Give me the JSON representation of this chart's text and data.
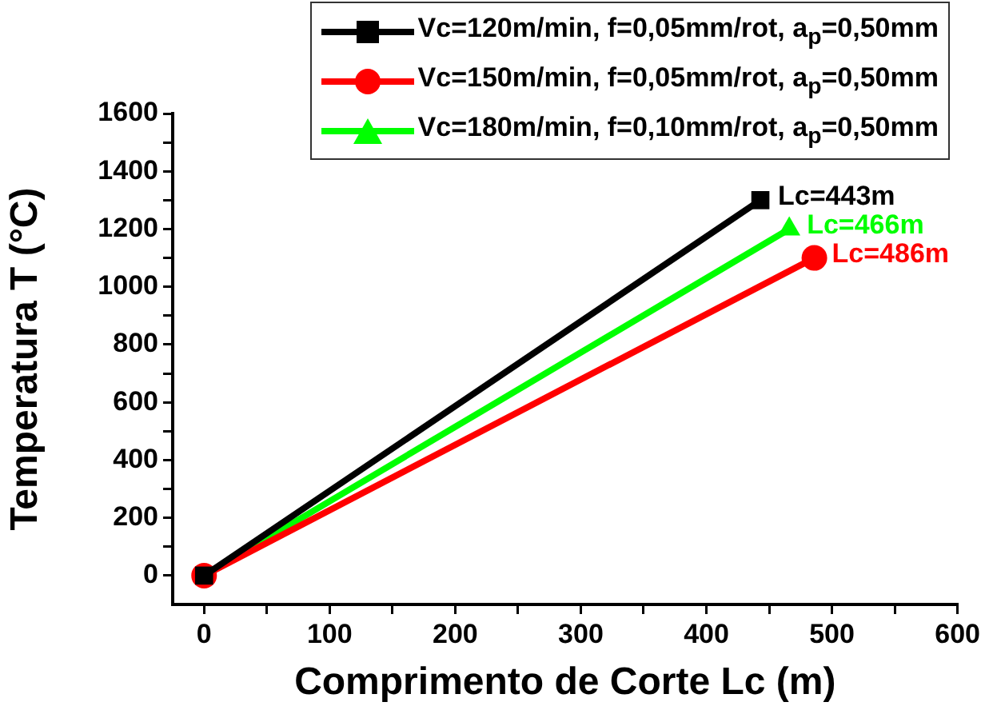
{
  "chart_data": {
    "type": "line",
    "xlabel": "Comprimento de Corte Lc (m)",
    "ylabel": "Temperatura T (°C)",
    "xlim": [
      -25,
      600
    ],
    "xticks": [
      0,
      {
        "value": 50,
        "label": null
      },
      100,
      {
        "value": 150,
        "label": null
      },
      200,
      {
        "value": 250,
        "label": null
      },
      300,
      {
        "value": 350,
        "label": null
      },
      400,
      {
        "value": 450,
        "label": null
      },
      500,
      {
        "value": 550,
        "label": null
      },
      600
    ],
    "ylim": [
      -100,
      1600
    ],
    "yticks": [
      0,
      {
        "value": 100,
        "label": null
      },
      200,
      {
        "value": 300,
        "label": null
      },
      400,
      {
        "value": 500,
        "label": null
      },
      600,
      {
        "value": 700,
        "label": null
      },
      800,
      {
        "value": 900,
        "label": null
      },
      1000,
      {
        "value": 1100,
        "label": null
      },
      1200,
      {
        "value": 1300,
        "label": null
      },
      1400,
      {
        "value": 1500,
        "label": null
      },
      1600
    ],
    "grid": false,
    "legend": "top right",
    "line_style": "solid",
    "series": [
      {
        "name": "Vc=120m/min, f=0,05mm/rot, a$_{p}$=0,50mm",
        "color": "#000000",
        "marker": "square",
        "x": [
          0,
          443
        ],
        "values": [
          0,
          1300
        ]
      },
      {
        "name": "Vc=150m/min, f=0,05mm/rot, a$_{p}$=0,50mm",
        "color": "#ff0000",
        "marker": "circle",
        "x": [
          0,
          486
        ],
        "values": [
          0,
          1100
        ]
      },
      {
        "name": "Vc=180m/min, f=0,10mm/rot, a$_{p}$=0,50mm",
        "color": "#00ff00",
        "marker": "triangle",
        "x": [
          0,
          466
        ],
        "values": [
          0,
          1200
        ]
      }
    ],
    "annotations": [
      {
        "text": "Lc=443m",
        "x": 443,
        "y": 1300
      },
      {
        "text": "Lc=486m",
        "x": 486,
        "y": 1100
      },
      {
        "text": "Lc=466m",
        "x": 466,
        "y": 1200
      }
    ]
  }
}
